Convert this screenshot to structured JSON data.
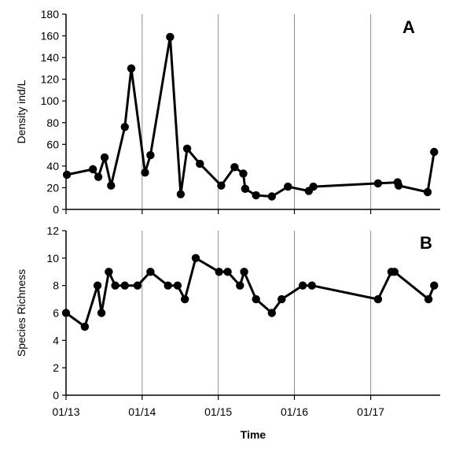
{
  "chart_data": [
    {
      "type": "line",
      "panel_label": "A",
      "ylabel": "Density ind/L",
      "xlabel": "",
      "ylim": [
        0,
        180
      ],
      "yticks": [
        0,
        20,
        40,
        60,
        80,
        100,
        120,
        140,
        160,
        180
      ],
      "x_tick_labels": [],
      "vertical_grid": true,
      "markers": true,
      "line_color": "#000000",
      "series": [
        {
          "points": [
            {
              "x": "2013-01-05",
              "y": 32
            },
            {
              "x": "2013-05-10",
              "y": 37
            },
            {
              "x": "2013-06-05",
              "y": 30
            },
            {
              "x": "2013-07-05",
              "y": 48
            },
            {
              "x": "2013-08-05",
              "y": 22
            },
            {
              "x": "2013-10-10",
              "y": 76
            },
            {
              "x": "2013-11-10",
              "y": 130
            },
            {
              "x": "2014-01-15",
              "y": 34
            },
            {
              "x": "2014-02-10",
              "y": 50
            },
            {
              "x": "2014-05-15",
              "y": 159
            },
            {
              "x": "2014-07-05",
              "y": 14
            },
            {
              "x": "2014-08-05",
              "y": 56
            },
            {
              "x": "2014-10-05",
              "y": 42
            },
            {
              "x": "2015-01-15",
              "y": 22
            },
            {
              "x": "2015-03-20",
              "y": 39
            },
            {
              "x": "2015-05-01",
              "y": 33
            },
            {
              "x": "2015-05-10",
              "y": 19
            },
            {
              "x": "2015-07-01",
              "y": 13
            },
            {
              "x": "2015-09-15",
              "y": 12
            },
            {
              "x": "2015-12-01",
              "y": 21
            },
            {
              "x": "2016-03-10",
              "y": 17
            },
            {
              "x": "2016-04-01",
              "y": 21
            },
            {
              "x": "2017-02-05",
              "y": 24
            },
            {
              "x": "2017-05-10",
              "y": 25
            },
            {
              "x": "2017-05-15",
              "y": 22
            },
            {
              "x": "2017-10-01",
              "y": 16
            },
            {
              "x": "2017-11-01",
              "y": 53
            }
          ]
        }
      ]
    },
    {
      "type": "line",
      "panel_label": "B",
      "ylabel": "Species Richness",
      "xlabel": "Time",
      "ylim": [
        0,
        12
      ],
      "yticks": [
        0,
        2,
        4,
        6,
        8,
        10,
        12
      ],
      "x_tick_labels": [
        {
          "x": "2013-01-01",
          "label": "01/13"
        },
        {
          "x": "2014-01-01",
          "label": "01/14"
        },
        {
          "x": "2015-01-01",
          "label": "01/15"
        },
        {
          "x": "2016-01-01",
          "label": "01/16"
        },
        {
          "x": "2017-01-01",
          "label": "01/17"
        }
      ],
      "vertical_grid": true,
      "markers": true,
      "line_color": "#000000",
      "series": [
        {
          "points": [
            {
              "x": "2013-01-01",
              "y": 6
            },
            {
              "x": "2013-04-01",
              "y": 5
            },
            {
              "x": "2013-06-01",
              "y": 8
            },
            {
              "x": "2013-06-20",
              "y": 6
            },
            {
              "x": "2013-07-25",
              "y": 9
            },
            {
              "x": "2013-08-25",
              "y": 8
            },
            {
              "x": "2013-10-10",
              "y": 8
            },
            {
              "x": "2013-12-10",
              "y": 8
            },
            {
              "x": "2014-02-10",
              "y": 9
            },
            {
              "x": "2014-05-05",
              "y": 8
            },
            {
              "x": "2014-06-20",
              "y": 8
            },
            {
              "x": "2014-07-25",
              "y": 7
            },
            {
              "x": "2014-09-15",
              "y": 10
            },
            {
              "x": "2015-01-05",
              "y": 9
            },
            {
              "x": "2015-02-15",
              "y": 9
            },
            {
              "x": "2015-04-15",
              "y": 8
            },
            {
              "x": "2015-05-05",
              "y": 9
            },
            {
              "x": "2015-07-01",
              "y": 7
            },
            {
              "x": "2015-09-15",
              "y": 6
            },
            {
              "x": "2015-11-01",
              "y": 7
            },
            {
              "x": "2016-02-10",
              "y": 8
            },
            {
              "x": "2016-03-25",
              "y": 8
            },
            {
              "x": "2017-02-05",
              "y": 7
            },
            {
              "x": "2017-04-10",
              "y": 9
            },
            {
              "x": "2017-04-25",
              "y": 9
            },
            {
              "x": "2017-10-05",
              "y": 7
            },
            {
              "x": "2017-11-01",
              "y": 8
            }
          ]
        }
      ]
    }
  ]
}
